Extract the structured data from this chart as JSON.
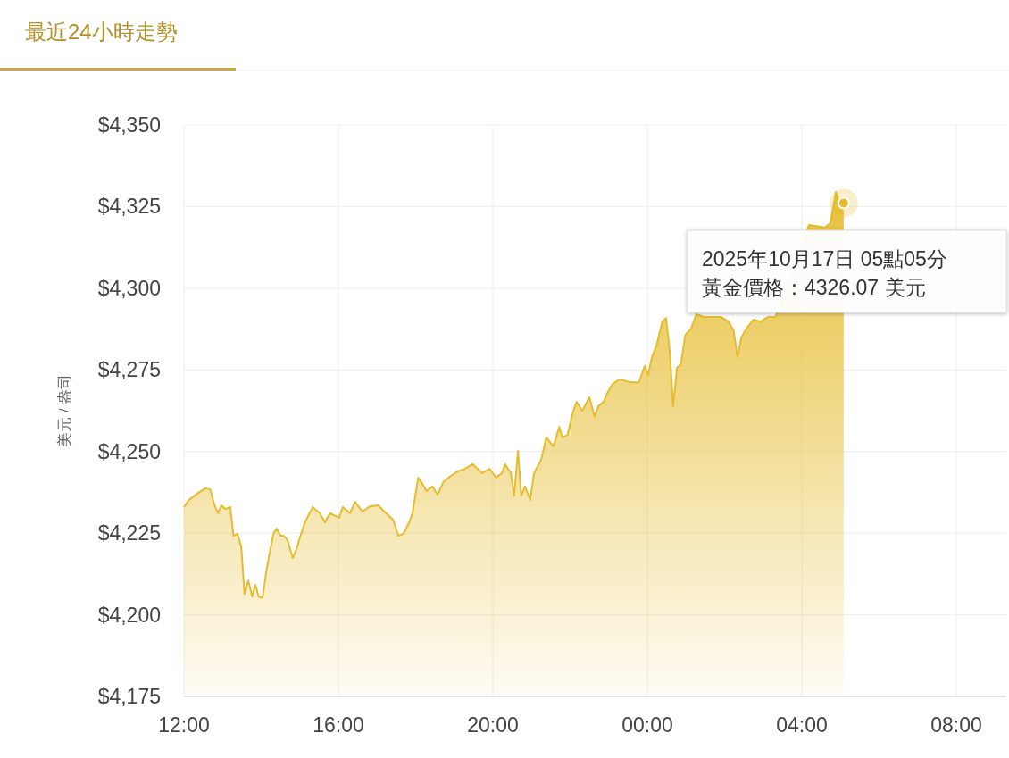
{
  "chart_data": {
    "type": "area",
    "title": "最近24小時走勢",
    "ylabel": "美元 / 盎司",
    "xlim": [
      "2025-10-16T12:00",
      "2025-10-17T09:18"
    ],
    "xticks": [
      {
        "value": "2025-10-16T12:00",
        "label": "12:00"
      },
      {
        "value": "2025-10-16T16:00",
        "label": "16:00"
      },
      {
        "value": "2025-10-16T20:00",
        "label": "20:00"
      },
      {
        "value": "2025-10-17T00:00",
        "label": "00:00"
      },
      {
        "value": "2025-10-17T04:00",
        "label": "04:00"
      },
      {
        "value": "2025-10-17T08:00",
        "label": "08:00"
      }
    ],
    "ylim": [
      4175,
      4350
    ],
    "yticks": [
      {
        "value": 4175,
        "label": "$4,175"
      },
      {
        "value": 4200,
        "label": "$4,200"
      },
      {
        "value": 4225,
        "label": "$4,225"
      },
      {
        "value": 4250,
        "label": "$4,250"
      },
      {
        "value": 4275,
        "label": "$4,275"
      },
      {
        "value": 4300,
        "label": "$4,300"
      },
      {
        "value": 4325,
        "label": "$4,325"
      },
      {
        "value": 4350,
        "label": "$4,350"
      }
    ],
    "grid": true,
    "marker": "none",
    "line_style": "solid",
    "x": [
      "2025-10-16T12:00",
      "2025-10-16T12:08",
      "2025-10-16T12:22",
      "2025-10-16T12:33",
      "2025-10-16T12:41",
      "2025-10-16T12:47",
      "2025-10-16T12:53",
      "2025-10-16T12:58",
      "2025-10-16T13:04",
      "2025-10-16T13:12",
      "2025-10-16T13:17",
      "2025-10-16T13:23",
      "2025-10-16T13:29",
      "2025-10-16T13:34",
      "2025-10-16T13:40",
      "2025-10-16T13:46",
      "2025-10-16T13:51",
      "2025-10-16T13:56",
      "2025-10-16T14:02",
      "2025-10-16T14:08",
      "2025-10-16T14:13",
      "2025-10-16T14:19",
      "2025-10-16T14:24",
      "2025-10-16T14:30",
      "2025-10-16T14:35",
      "2025-10-16T14:41",
      "2025-10-16T14:49",
      "2025-10-16T14:55",
      "2025-10-16T15:01",
      "2025-10-16T15:08",
      "2025-10-16T15:20",
      "2025-10-16T15:31",
      "2025-10-16T15:39",
      "2025-10-16T15:47",
      "2025-10-16T16:01",
      "2025-10-16T16:07",
      "2025-10-16T16:18",
      "2025-10-16T16:26",
      "2025-10-16T16:37",
      "2025-10-16T16:49",
      "2025-10-16T17:02",
      "2025-10-16T17:14",
      "2025-10-16T17:25",
      "2025-10-16T17:33",
      "2025-10-16T17:41",
      "2025-10-16T17:50",
      "2025-10-16T17:55",
      "2025-10-16T18:04",
      "2025-10-16T18:09",
      "2025-10-16T18:17",
      "2025-10-16T18:26",
      "2025-10-16T18:34",
      "2025-10-16T18:43",
      "2025-10-16T18:53",
      "2025-10-16T19:05",
      "2025-10-16T19:16",
      "2025-10-16T19:29",
      "2025-10-16T19:43",
      "2025-10-16T19:55",
      "2025-10-16T20:05",
      "2025-10-16T20:14",
      "2025-10-16T20:19",
      "2025-10-16T20:28",
      "2025-10-16T20:33",
      "2025-10-16T20:39",
      "2025-10-16T20:44",
      "2025-10-16T20:50",
      "2025-10-16T20:58",
      "2025-10-16T21:04",
      "2025-10-16T21:15",
      "2025-10-16T21:23",
      "2025-10-16T21:34",
      "2025-10-16T21:43",
      "2025-10-16T21:48",
      "2025-10-16T21:56",
      "2025-10-16T22:05",
      "2025-10-16T22:10",
      "2025-10-16T22:19",
      "2025-10-16T22:30",
      "2025-10-16T22:38",
      "2025-10-16T22:44",
      "2025-10-16T22:52",
      "2025-10-16T22:58",
      "2025-10-16T23:06",
      "2025-10-16T23:17",
      "2025-10-16T23:34",
      "2025-10-16T23:47",
      "2025-10-16T23:56",
      "2025-10-17T00:01",
      "2025-10-17T00:07",
      "2025-10-17T00:15",
      "2025-10-17T00:23",
      "2025-10-17T00:29",
      "2025-10-17T00:35",
      "2025-10-17T00:40",
      "2025-10-17T00:46",
      "2025-10-17T00:52",
      "2025-10-17T00:59",
      "2025-10-17T01:08",
      "2025-10-17T01:16",
      "2025-10-17T01:28",
      "2025-10-17T01:55",
      "2025-10-17T02:06",
      "2025-10-17T02:14",
      "2025-10-17T02:20",
      "2025-10-17T02:26",
      "2025-10-17T02:34",
      "2025-10-17T02:45",
      "2025-10-17T02:56",
      "2025-10-17T03:07",
      "2025-10-17T03:19",
      "2025-10-17T04:11",
      "2025-10-17T04:36",
      "2025-10-17T04:44",
      "2025-10-17T04:53",
      "2025-10-17T04:58",
      "2025-10-17T05:05"
    ],
    "series": [
      {
        "color": "#e6bc2e",
        "values": [
          4233.0,
          4235.2,
          4237.3,
          4238.7,
          4238.4,
          4233.8,
          4231.1,
          4233.5,
          4232.4,
          4233.0,
          4224.2,
          4224.8,
          4220.9,
          4206.4,
          4210.5,
          4205.6,
          4209.2,
          4205.6,
          4205.1,
          4213.3,
          4218.7,
          4224.8,
          4226.4,
          4224.2,
          4224.2,
          4222.9,
          4217.4,
          4220.1,
          4224.2,
          4228.3,
          4233.0,
          4231.1,
          4228.3,
          4231.1,
          4229.7,
          4233.0,
          4231.1,
          4234.6,
          4231.6,
          4233.2,
          4233.5,
          4231.1,
          4229.1,
          4224.2,
          4224.8,
          4228.3,
          4231.1,
          4242.0,
          4240.6,
          4237.9,
          4239.3,
          4236.8,
          4240.6,
          4242.3,
          4243.9,
          4244.7,
          4246.1,
          4243.4,
          4244.7,
          4242.0,
          4243.4,
          4246.1,
          4243.4,
          4236.5,
          4250.2,
          4236.5,
          4239.3,
          4235.2,
          4243.4,
          4247.5,
          4254.3,
          4251.6,
          4257.6,
          4254.3,
          4255.1,
          4262.5,
          4265.2,
          4262.5,
          4266.6,
          4260.6,
          4263.9,
          4265.2,
          4268.0,
          4270.7,
          4272.1,
          4271.2,
          4271.2,
          4276.2,
          4273.4,
          4278.9,
          4283.0,
          4289.8,
          4290.9,
          4280.3,
          4263.9,
          4275.6,
          4276.7,
          4285.7,
          4287.7,
          4292.0,
          4291.2,
          4291.2,
          4289.8,
          4287.1,
          4278.9,
          4284.9,
          4287.7,
          4290.4,
          4289.8,
          4291.2,
          4291.2,
          4319.4,
          4318.6,
          4319.9,
          4329.5,
          4326.5,
          4326.07
        ]
      }
    ],
    "annotations": [
      {
        "text": "2025年10月17日 05點05分",
        "x": "2025-10-17T05:05",
        "y": 4326.07
      },
      "黃金價格：4326.07 美元"
    ]
  }
}
